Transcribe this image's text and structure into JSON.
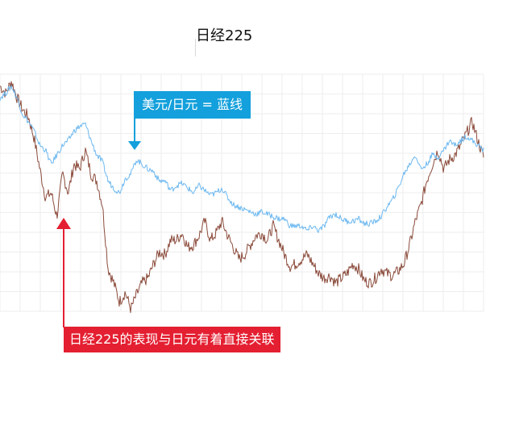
{
  "title": "日经225",
  "annotations": {
    "usdjpy_label": "美元/日元 = 蓝线",
    "correlation_label": "日经225的表现与日元有着直接关联"
  },
  "colors": {
    "nikkei_line": "#8a4a3a",
    "usdjpy_line": "#6cb8f0",
    "blue_callout": "#13a0dc",
    "red_callout": "#e41f31",
    "grid": "#eeeeee"
  },
  "chart_data": {
    "type": "line",
    "title": "日经225",
    "grid": true,
    "y_axis_visible": false,
    "x_axis_visible": false,
    "series": [
      {
        "name": "日经225",
        "color": "#8a4a3a",
        "values": [
          0.95,
          0.92,
          0.97,
          0.9,
          0.85,
          0.82,
          0.73,
          0.6,
          0.48,
          0.5,
          0.4,
          0.58,
          0.5,
          0.62,
          0.6,
          0.68,
          0.58,
          0.55,
          0.45,
          0.18,
          0.12,
          0.04,
          0.08,
          0.01,
          0.07,
          0.12,
          0.14,
          0.2,
          0.25,
          0.24,
          0.3,
          0.3,
          0.33,
          0.27,
          0.28,
          0.32,
          0.38,
          0.3,
          0.33,
          0.38,
          0.32,
          0.27,
          0.22,
          0.24,
          0.28,
          0.32,
          0.33,
          0.3,
          0.36,
          0.3,
          0.24,
          0.19,
          0.2,
          0.22,
          0.24,
          0.2,
          0.16,
          0.14,
          0.15,
          0.12,
          0.14,
          0.16,
          0.2,
          0.18,
          0.13,
          0.12,
          0.14,
          0.18,
          0.16,
          0.15,
          0.17,
          0.2,
          0.28,
          0.38,
          0.45,
          0.55,
          0.62,
          0.68,
          0.6,
          0.64,
          0.66,
          0.7,
          0.75,
          0.8,
          0.72,
          0.65
        ]
      },
      {
        "name": "美元/日元",
        "color": "#6cb8f0",
        "values": [
          0.9,
          0.92,
          0.95,
          0.9,
          0.83,
          0.8,
          0.76,
          0.7,
          0.68,
          0.62,
          0.66,
          0.7,
          0.72,
          0.76,
          0.78,
          0.79,
          0.72,
          0.66,
          0.63,
          0.55,
          0.52,
          0.5,
          0.56,
          0.58,
          0.64,
          0.62,
          0.6,
          0.59,
          0.55,
          0.55,
          0.51,
          0.53,
          0.54,
          0.52,
          0.5,
          0.53,
          0.51,
          0.49,
          0.5,
          0.52,
          0.48,
          0.45,
          0.44,
          0.43,
          0.42,
          0.41,
          0.42,
          0.41,
          0.4,
          0.39,
          0.39,
          0.36,
          0.36,
          0.36,
          0.34,
          0.36,
          0.34,
          0.36,
          0.4,
          0.41,
          0.39,
          0.38,
          0.38,
          0.39,
          0.37,
          0.37,
          0.38,
          0.4,
          0.44,
          0.47,
          0.52,
          0.58,
          0.62,
          0.66,
          0.6,
          0.62,
          0.66,
          0.65,
          0.68,
          0.72,
          0.7,
          0.72,
          0.74,
          0.72,
          0.7,
          0.68
        ]
      }
    ]
  }
}
